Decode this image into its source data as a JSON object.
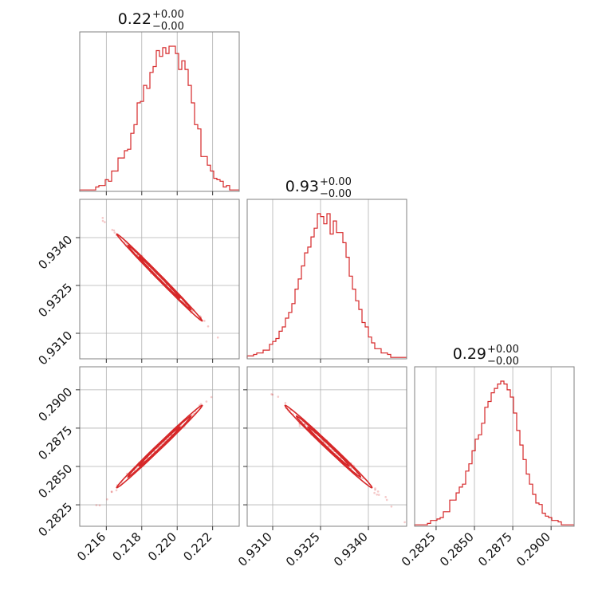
{
  "colors": {
    "series": "#d62728",
    "frame": "#808080",
    "grid": "#b0b0b0",
    "text": "#111111"
  },
  "chart_data": {
    "type": "corner",
    "grid": true,
    "parameters": [
      {
        "title": "0.22",
        "plus": "+0.00",
        "minus": "−0.00",
        "range": [
          0.2145,
          0.2235
        ],
        "ticks": [
          0.216,
          0.218,
          0.22,
          0.222
        ],
        "tick_labels": [
          "0.216",
          "0.218",
          "0.220",
          "0.222"
        ],
        "mean": 0.219,
        "sd": 0.00115
      },
      {
        "title": "0.93",
        "plus": "+0.00",
        "minus": "−0.00",
        "range": [
          0.9302,
          0.9352
        ],
        "ticks": [
          0.931,
          0.9325,
          0.934
        ],
        "tick_labels": [
          "0.9310",
          "0.9325",
          "0.9340"
        ],
        "mean": 0.93275,
        "sd": 0.00065
      },
      {
        "title": "0.29",
        "plus": "+0.00",
        "minus": "−0.00",
        "range": [
          0.2811,
          0.2915
        ],
        "ticks": [
          0.2825,
          0.285,
          0.2875,
          0.29
        ],
        "tick_labels": [
          "0.2825",
          "0.2850",
          "0.2875",
          "0.2900"
        ],
        "mean": 0.2863,
        "sd": 0.00128
      }
    ],
    "histograms": [
      [
        0.01,
        0.01,
        0.01,
        0.01,
        0.01,
        0.03,
        0.04,
        0.04,
        0.08,
        0.07,
        0.14,
        0.14,
        0.23,
        0.23,
        0.28,
        0.29,
        0.4,
        0.46,
        0.61,
        0.62,
        0.73,
        0.71,
        0.82,
        0.86,
        0.97,
        0.93,
        0.99,
        0.95,
        1.0,
        1.0,
        0.95,
        0.84,
        0.9,
        0.84,
        0.73,
        0.61,
        0.46,
        0.43,
        0.24,
        0.24,
        0.18,
        0.14,
        0.09,
        0.08,
        0.07,
        0.03,
        0.04,
        0.01,
        0.01,
        0.01
      ],
      [
        0.02,
        0.02,
        0.03,
        0.04,
        0.04,
        0.06,
        0.06,
        0.1,
        0.12,
        0.14,
        0.19,
        0.22,
        0.28,
        0.32,
        0.38,
        0.48,
        0.55,
        0.64,
        0.73,
        0.77,
        0.84,
        0.9,
        1.0,
        0.98,
        0.93,
        1.0,
        0.86,
        0.95,
        0.87,
        0.87,
        0.8,
        0.7,
        0.57,
        0.48,
        0.4,
        0.34,
        0.25,
        0.22,
        0.15,
        0.11,
        0.07,
        0.07,
        0.04,
        0.04,
        0.03,
        0.01,
        0.01,
        0.01,
        0.01,
        0.01
      ],
      [
        0.01,
        0.01,
        0.01,
        0.01,
        0.02,
        0.04,
        0.04,
        0.05,
        0.06,
        0.1,
        0.1,
        0.18,
        0.18,
        0.23,
        0.27,
        0.29,
        0.38,
        0.43,
        0.52,
        0.6,
        0.63,
        0.71,
        0.82,
        0.86,
        0.92,
        0.95,
        0.98,
        1.0,
        0.98,
        0.94,
        0.89,
        0.78,
        0.66,
        0.56,
        0.46,
        0.36,
        0.29,
        0.22,
        0.16,
        0.15,
        0.09,
        0.07,
        0.06,
        0.04,
        0.04,
        0.03,
        0.01,
        0.01,
        0.01,
        0.01
      ]
    ],
    "correlations": {
      "1,0": -0.997,
      "2,0": 0.996,
      "2,1": -0.995
    },
    "n_scatter_points": 90
  }
}
